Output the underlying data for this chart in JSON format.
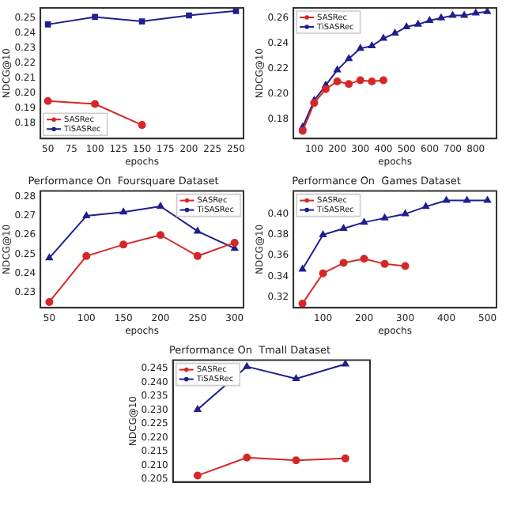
{
  "chart_data": [
    {
      "type": "line",
      "xlabel": "epochs",
      "ylabel": "NDCG@10",
      "x": [
        50,
        100,
        150,
        200,
        250
      ],
      "xlim": [
        42,
        258
      ],
      "xticks": [
        50,
        75,
        100,
        125,
        150,
        175,
        200,
        225,
        250
      ],
      "ylim": [
        0.17,
        0.257
      ],
      "yticks": [
        0.18,
        0.19,
        {
          "value": 0.2,
          "label": "0.20"
        },
        0.21,
        0.22,
        0.23,
        0.24,
        0.25
      ],
      "legend": "bottom left",
      "series": [
        {
          "name": "SASRec",
          "color": "#d62728",
          "marker": "circle",
          "values": [
            0.195,
            0.193,
            0.179,
            null,
            null
          ]
        },
        {
          "name": "TiSASRec",
          "color": "#1f1f8f",
          "marker": "square",
          "values": [
            0.246,
            0.251,
            0.248,
            0.252,
            0.255
          ]
        }
      ]
    },
    {
      "type": "line",
      "xlabel": "epochs",
      "ylabel": "NDCG@10",
      "x": [
        50,
        100,
        150,
        200,
        250,
        300,
        350,
        400,
        450,
        500,
        550,
        600,
        650,
        700,
        750,
        800,
        850
      ],
      "xlim": [
        10,
        890
      ],
      "xticks": [
        100,
        200,
        300,
        400,
        500,
        600,
        700,
        800
      ],
      "ylim": [
        0.165,
        0.268
      ],
      "yticks": [
        0.18,
        {
          "value": 0.2,
          "label": "0.20"
        },
        0.22,
        0.24,
        0.26
      ],
      "legend": "top left",
      "series": [
        {
          "name": "SASRec",
          "color": "#d62728",
          "marker": "circle",
          "values": [
            0.171,
            0.193,
            0.204,
            0.21,
            0.208,
            0.211,
            0.21,
            0.211,
            null,
            null,
            null,
            null,
            null,
            null,
            null,
            null,
            null
          ]
        },
        {
          "name": "TiSASRec",
          "color": "#1f1f8f",
          "marker": "triangle",
          "values": [
            0.174,
            0.195,
            0.207,
            0.219,
            0.228,
            0.236,
            0.238,
            0.244,
            0.248,
            0.253,
            0.255,
            0.258,
            0.26,
            0.262,
            0.262,
            0.264,
            0.265
          ]
        }
      ]
    },
    {
      "type": "line",
      "title": "Performance On  Foursquare Dataset",
      "xlabel": "epochs",
      "ylabel": "NDCG@10",
      "x": [
        50,
        100,
        150,
        200,
        250,
        300
      ],
      "xlim": [
        38,
        312
      ],
      "xticks": [
        50,
        100,
        150,
        200,
        250,
        300
      ],
      "ylim": [
        0.222,
        0.283
      ],
      "yticks": [
        0.23,
        0.24,
        0.25,
        0.26,
        0.27,
        0.28
      ],
      "legend": "top right",
      "series": [
        {
          "name": "SASRec",
          "color": "#d62728",
          "marker": "circle",
          "values": [
            0.225,
            0.249,
            0.255,
            0.26,
            0.249,
            0.256
          ]
        },
        {
          "name": "TiSASRec",
          "color": "#1f1f8f",
          "marker": "triangle",
          "values": [
            0.248,
            0.27,
            0.272,
            0.275,
            0.262,
            0.253
          ]
        }
      ]
    },
    {
      "type": "line",
      "title": "Performance On  Games Dataset",
      "xlabel": "epochs",
      "ylabel": "NDCG@10",
      "x": [
        50,
        100,
        150,
        200,
        250,
        300,
        350,
        400,
        450,
        500
      ],
      "xlim": [
        28,
        522
      ],
      "xticks": [
        100,
        200,
        300,
        400,
        500
      ],
      "ylim": [
        0.31,
        0.422
      ],
      "yticks": [
        0.32,
        0.34,
        0.36,
        0.38,
        {
          "value": 0.4,
          "label": "0.40"
        }
      ],
      "legend": "top left",
      "series": [
        {
          "name": "SASRec",
          "color": "#d62728",
          "marker": "circle",
          "values": [
            0.314,
            0.343,
            0.353,
            0.357,
            0.352,
            0.35,
            null,
            null,
            null,
            null
          ]
        },
        {
          "name": "TiSASRec",
          "color": "#1f1f8f",
          "marker": "triangle",
          "values": [
            0.347,
            0.38,
            0.386,
            0.392,
            0.396,
            0.4,
            0.407,
            0.413,
            0.413,
            0.413
          ]
        }
      ]
    },
    {
      "type": "line",
      "title": "Performance On  Tmall Dataset",
      "ylabel": "NDCG@10",
      "categories": [
        null,
        null,
        null,
        null
      ],
      "ylim": [
        0.204,
        0.248
      ],
      "yticks": [
        0.205,
        {
          "value": 0.21,
          "label": "0.210"
        },
        0.215,
        {
          "value": 0.22,
          "label": "0.220"
        },
        0.225,
        {
          "value": 0.23,
          "label": "0.230"
        },
        0.235,
        {
          "value": 0.24,
          "label": "0.240"
        },
        0.245
      ],
      "legend": "top left",
      "series": [
        {
          "name": "SASRec",
          "color": "#d62728",
          "marker": "circle",
          "values": [
            0.2063,
            0.2128,
            0.2118,
            0.2125
          ]
        },
        {
          "name": "TiSASRec",
          "color": "#1f1f8f",
          "marker": "triangle",
          "values": [
            0.2302,
            0.2457,
            0.2413,
            0.2466
          ]
        }
      ]
    }
  ]
}
